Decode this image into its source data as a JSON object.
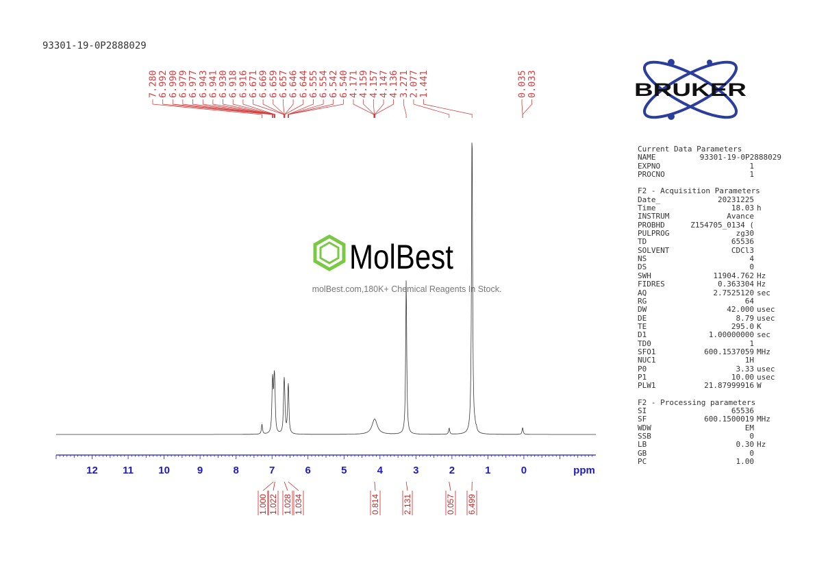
{
  "sample_id": "93301-19-0P2888029",
  "watermark": {
    "brand": "MolBest",
    "tagline": "molBest.com,180K+ Chemical Reagents In Stock."
  },
  "logo": {
    "text": "BRUKER",
    "color": "#2b3e9e"
  },
  "colors": {
    "axis": "#1a1acc",
    "peak_labels": "#d04040",
    "integrals": "#cc2222",
    "spectrum": "#333333",
    "watermark_hex": "#7ac943"
  },
  "chart_data": {
    "type": "line",
    "title": "",
    "xlabel": "ppm",
    "ylabel": "",
    "xlim": [
      13.0,
      -2.0
    ],
    "x_reversed": true,
    "ticks": [
      "12",
      "11",
      "10",
      "9",
      "8",
      "7",
      "6",
      "5",
      "4",
      "3",
      "2",
      "1",
      "0"
    ],
    "tick_values": [
      12,
      11,
      10,
      9,
      8,
      7,
      6,
      5,
      4,
      3,
      2,
      1,
      0
    ],
    "peaks": [
      {
        "ppm": 7.28,
        "height": 0.032
      },
      {
        "ppm": 6.992,
        "height": 0.095
      },
      {
        "ppm": 6.979,
        "height": 0.097
      },
      {
        "ppm": 6.943,
        "height": 0.095
      },
      {
        "ppm": 6.93,
        "height": 0.088
      },
      {
        "ppm": 6.918,
        "height": 0.05
      },
      {
        "ppm": 6.671,
        "height": 0.085
      },
      {
        "ppm": 6.659,
        "height": 0.088
      },
      {
        "ppm": 6.646,
        "height": 0.05
      },
      {
        "ppm": 6.555,
        "height": 0.09
      },
      {
        "ppm": 6.542,
        "height": 0.092
      },
      {
        "ppm": 4.159,
        "height": 0.016
      },
      {
        "ppm": 4.147,
        "height": 0.018
      },
      {
        "ppm": 4.136,
        "height": 0.016
      },
      {
        "ppm": 3.271,
        "height": 0.5
      },
      {
        "ppm": 2.077,
        "height": 0.02
      },
      {
        "ppm": 1.441,
        "height": 1.0
      },
      {
        "ppm": 1.36,
        "height": 0.012
      },
      {
        "ppm": 1.32,
        "height": 0.01
      },
      {
        "ppm": 0.035,
        "height": 0.022
      }
    ],
    "peak_labels": [
      "7.280",
      "6.992",
      "6.990",
      "6.979",
      "6.977",
      "6.943",
      "6.941",
      "6.930",
      "6.918",
      "6.916",
      "6.671",
      "6.669",
      "6.659",
      "6.657",
      "6.646",
      "6.644",
      "6.555",
      "6.554",
      "6.542",
      "6.540",
      "4.171",
      "4.159",
      "4.157",
      "4.147",
      "4.136",
      "3.271",
      "2.077",
      "1.441",
      "0.035",
      "0.033"
    ],
    "integrals": [
      {
        "ppm": 6.96,
        "value": "1.000"
      },
      {
        "ppm": 6.92,
        "value": "1.022"
      },
      {
        "ppm": 6.66,
        "value": "1.028"
      },
      {
        "ppm": 6.55,
        "value": "1.034"
      },
      {
        "ppm": 4.15,
        "value": "0.814"
      },
      {
        "ppm": 3.27,
        "value": "2.131"
      },
      {
        "ppm": 2.08,
        "value": "0.057"
      },
      {
        "ppm": 1.44,
        "value": "6.499"
      }
    ]
  },
  "parameters": [
    {
      "title": "Current Data Parameters",
      "rows": [
        {
          "key": "NAME",
          "value": "93301-19-0P2888029",
          "unit": ""
        },
        {
          "key": "EXPNO",
          "value": "1",
          "unit": ""
        },
        {
          "key": "PROCNO",
          "value": "1",
          "unit": ""
        }
      ]
    },
    {
      "title": "F2 - Acquisition Parameters",
      "rows": [
        {
          "key": "Date_",
          "value": "20231225",
          "unit": ""
        },
        {
          "key": "Time",
          "value": "18.03",
          "unit": "h"
        },
        {
          "key": "INSTRUM",
          "value": "Avance",
          "unit": ""
        },
        {
          "key": "PROBHD",
          "value": "Z154705_0134 (",
          "unit": ""
        },
        {
          "key": "PULPROG",
          "value": "zg30",
          "unit": ""
        },
        {
          "key": "TD",
          "value": "65536",
          "unit": ""
        },
        {
          "key": "SOLVENT",
          "value": "CDCl3",
          "unit": ""
        },
        {
          "key": "NS",
          "value": "4",
          "unit": ""
        },
        {
          "key": "DS",
          "value": "0",
          "unit": ""
        },
        {
          "key": "SWH",
          "value": "11904.762",
          "unit": "Hz"
        },
        {
          "key": "FIDRES",
          "value": "0.363304",
          "unit": "Hz"
        },
        {
          "key": "AQ",
          "value": "2.7525120",
          "unit": "sec"
        },
        {
          "key": "RG",
          "value": "64",
          "unit": ""
        },
        {
          "key": "DW",
          "value": "42.000",
          "unit": "usec"
        },
        {
          "key": "DE",
          "value": "8.79",
          "unit": "usec"
        },
        {
          "key": "TE",
          "value": "295.0",
          "unit": "K"
        },
        {
          "key": "D1",
          "value": "1.00000000",
          "unit": "sec"
        },
        {
          "key": "TD0",
          "value": "1",
          "unit": ""
        },
        {
          "key": "SFO1",
          "value": "600.1537059",
          "unit": "MHz"
        },
        {
          "key": "NUC1",
          "value": "1H",
          "unit": ""
        },
        {
          "key": "P0",
          "value": "3.33",
          "unit": "usec"
        },
        {
          "key": "P1",
          "value": "10.00",
          "unit": "usec"
        },
        {
          "key": "PLW1",
          "value": "21.87999916",
          "unit": "W"
        }
      ]
    },
    {
      "title": "F2 - Processing parameters",
      "rows": [
        {
          "key": "SI",
          "value": "65536",
          "unit": ""
        },
        {
          "key": "SF",
          "value": "600.1500019",
          "unit": "MHz"
        },
        {
          "key": "WDW",
          "value": "EM",
          "unit": ""
        },
        {
          "key": "SSB",
          "value": "0",
          "unit": ""
        },
        {
          "key": "LB",
          "value": "0.30",
          "unit": "Hz"
        },
        {
          "key": "GB",
          "value": "0",
          "unit": ""
        },
        {
          "key": "PC",
          "value": "1.00",
          "unit": ""
        }
      ]
    }
  ]
}
